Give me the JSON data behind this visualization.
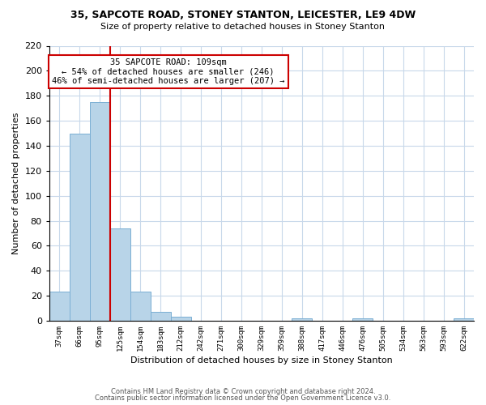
{
  "title": "35, SAPCOTE ROAD, STONEY STANTON, LEICESTER, LE9 4DW",
  "subtitle": "Size of property relative to detached houses in Stoney Stanton",
  "xlabel": "Distribution of detached houses by size in Stoney Stanton",
  "ylabel": "Number of detached properties",
  "bin_labels": [
    "37sqm",
    "66sqm",
    "95sqm",
    "125sqm",
    "154sqm",
    "183sqm",
    "212sqm",
    "242sqm",
    "271sqm",
    "300sqm",
    "329sqm",
    "359sqm",
    "388sqm",
    "417sqm",
    "446sqm",
    "476sqm",
    "505sqm",
    "534sqm",
    "563sqm",
    "593sqm",
    "622sqm"
  ],
  "bar_heights": [
    23,
    150,
    175,
    74,
    23,
    7,
    3,
    0,
    0,
    0,
    0,
    0,
    2,
    0,
    0,
    2,
    0,
    0,
    0,
    0,
    2
  ],
  "bar_color": "#b8d4e8",
  "bar_edge_color": "#7bafd4",
  "red_line_color": "#cc0000",
  "red_line_x": 2.5,
  "annotation_text": "35 SAPCOTE ROAD: 109sqm\n← 54% of detached houses are smaller (246)\n46% of semi-detached houses are larger (207) →",
  "annotation_box_color": "#ffffff",
  "annotation_box_edge": "#cc0000",
  "ylim": [
    0,
    220
  ],
  "yticks": [
    0,
    20,
    40,
    60,
    80,
    100,
    120,
    140,
    160,
    180,
    200,
    220
  ],
  "footnote1": "Contains HM Land Registry data © Crown copyright and database right 2024.",
  "footnote2": "Contains public sector information licensed under the Open Government Licence v3.0.",
  "bg_color": "#ffffff",
  "grid_color": "#c8d8ea"
}
